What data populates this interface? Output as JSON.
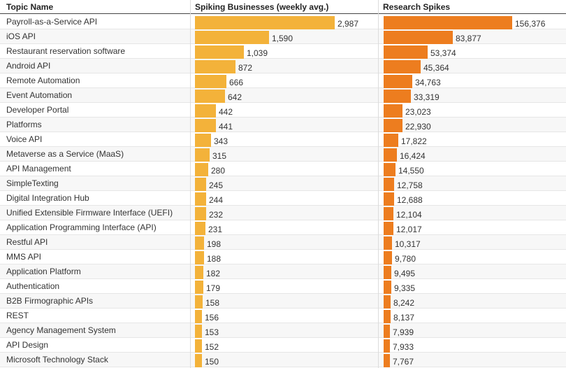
{
  "chart_data": {
    "type": "table",
    "columns": [
      "Topic Name",
      "Spiking Businesses (weekly avg.)",
      "Research Spikes"
    ],
    "colors": {
      "spiking": "#f3b23a",
      "research": "#ed7d1f"
    },
    "rows": [
      {
        "topic": "Payroll-as-a-Service API",
        "spiking": 2987,
        "spiking_label": "2,987",
        "research": 156376,
        "research_label": "156,376"
      },
      {
        "topic": "iOS API",
        "spiking": 1590,
        "spiking_label": "1,590",
        "research": 83877,
        "research_label": "83,877"
      },
      {
        "topic": "Restaurant reservation software",
        "spiking": 1039,
        "spiking_label": "1,039",
        "research": 53374,
        "research_label": "53,374"
      },
      {
        "topic": "Android API",
        "spiking": 872,
        "spiking_label": "872",
        "research": 45364,
        "research_label": "45,364"
      },
      {
        "topic": "Remote Automation",
        "spiking": 666,
        "spiking_label": "666",
        "research": 34763,
        "research_label": "34,763"
      },
      {
        "topic": "Event Automation",
        "spiking": 642,
        "spiking_label": "642",
        "research": 33319,
        "research_label": "33,319"
      },
      {
        "topic": "Developer Portal",
        "spiking": 442,
        "spiking_label": "442",
        "research": 23023,
        "research_label": "23,023"
      },
      {
        "topic": "Platforms",
        "spiking": 441,
        "spiking_label": "441",
        "research": 22930,
        "research_label": "22,930"
      },
      {
        "topic": "Voice API",
        "spiking": 343,
        "spiking_label": "343",
        "research": 17822,
        "research_label": "17,822"
      },
      {
        "topic": "Metaverse as a Service (MaaS)",
        "spiking": 315,
        "spiking_label": "315",
        "research": 16424,
        "research_label": "16,424"
      },
      {
        "topic": "API Management",
        "spiking": 280,
        "spiking_label": "280",
        "research": 14550,
        "research_label": "14,550"
      },
      {
        "topic": "SimpleTexting",
        "spiking": 245,
        "spiking_label": "245",
        "research": 12758,
        "research_label": "12,758"
      },
      {
        "topic": "Digital Integration Hub",
        "spiking": 244,
        "spiking_label": "244",
        "research": 12688,
        "research_label": "12,688"
      },
      {
        "topic": "Unified Extensible Firmware Interface (UEFI)",
        "spiking": 232,
        "spiking_label": "232",
        "research": 12104,
        "research_label": "12,104"
      },
      {
        "topic": "Application Programming Interface (API)",
        "spiking": 231,
        "spiking_label": "231",
        "research": 12017,
        "research_label": "12,017"
      },
      {
        "topic": "Restful API",
        "spiking": 198,
        "spiking_label": "198",
        "research": 10317,
        "research_label": "10,317"
      },
      {
        "topic": "MMS API",
        "spiking": 188,
        "spiking_label": "188",
        "research": 9780,
        "research_label": "9,780"
      },
      {
        "topic": "Application Platform",
        "spiking": 182,
        "spiking_label": "182",
        "research": 9495,
        "research_label": "9,495"
      },
      {
        "topic": "Authentication",
        "spiking": 179,
        "spiking_label": "179",
        "research": 9335,
        "research_label": "9,335"
      },
      {
        "topic": "B2B Firmographic APIs",
        "spiking": 158,
        "spiking_label": "158",
        "research": 8242,
        "research_label": "8,242"
      },
      {
        "topic": "REST",
        "spiking": 156,
        "spiking_label": "156",
        "research": 8137,
        "research_label": "8,137"
      },
      {
        "topic": "Agency Management System",
        "spiking": 153,
        "spiking_label": "153",
        "research": 7939,
        "research_label": "7,939"
      },
      {
        "topic": "API Design",
        "spiking": 152,
        "spiking_label": "152",
        "research": 7933,
        "research_label": "7,933"
      },
      {
        "topic": "Microsoft Technology Stack",
        "spiking": 150,
        "spiking_label": "150",
        "research": 7767,
        "research_label": "7,767"
      }
    ]
  }
}
